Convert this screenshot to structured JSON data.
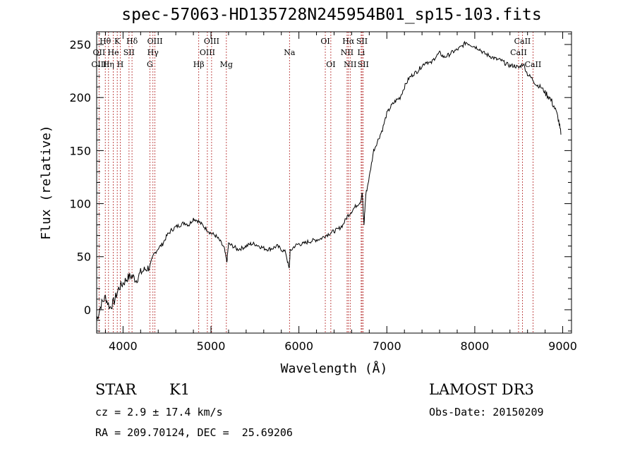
{
  "chart_data": {
    "type": "line",
    "title": "spec-57063-HD135728N245954B01_sp15-103.fits",
    "xlabel": "Wavelength (Å)",
    "ylabel": "Flux (relative)",
    "xlim": [
      3700,
      9100
    ],
    "ylim": [
      -22,
      262
    ],
    "x_ticks": [
      4000,
      5000,
      6000,
      7000,
      8000,
      9000
    ],
    "y_ticks": [
      0,
      50,
      100,
      150,
      200,
      250
    ],
    "series": [
      {
        "x": [
          3700,
          3750,
          3800,
          3850,
          3900,
          3950,
          4000,
          4050,
          4100,
          4150,
          4200,
          4250,
          4300,
          4350,
          4400,
          4450,
          4500,
          4550,
          4600,
          4650,
          4700,
          4750,
          4800,
          4850,
          4900,
          4950,
          5000,
          5050,
          5100,
          5150,
          5180,
          5200,
          5250,
          5300,
          5350,
          5400,
          5450,
          5500,
          5550,
          5600,
          5650,
          5700,
          5750,
          5800,
          5850,
          5890,
          5900,
          5950,
          6000,
          6050,
          6100,
          6150,
          6200,
          6250,
          6300,
          6350,
          6400,
          6450,
          6500,
          6550,
          6600,
          6650,
          6700,
          6720,
          6740,
          6760,
          6800,
          6850,
          6900,
          6950,
          7000,
          7050,
          7100,
          7150,
          7200,
          7250,
          7300,
          7350,
          7400,
          7450,
          7500,
          7550,
          7600,
          7650,
          7700,
          7750,
          7800,
          7850,
          7900,
          7950,
          8000,
          8050,
          8100,
          8150,
          8200,
          8250,
          8300,
          8350,
          8400,
          8450,
          8500,
          8550,
          8600,
          8650,
          8700,
          8750,
          8800,
          8850,
          8900,
          8950,
          8980
        ],
        "y": [
          -10,
          5,
          12,
          2,
          8,
          20,
          25,
          30,
          32,
          28,
          35,
          38,
          40,
          52,
          58,
          62,
          70,
          75,
          78,
          80,
          82,
          80,
          86,
          84,
          80,
          76,
          72,
          70,
          65,
          58,
          45,
          62,
          60,
          57,
          58,
          60,
          62,
          62,
          60,
          58,
          57,
          58,
          60,
          57,
          54,
          38,
          55,
          60,
          62,
          62,
          64,
          65,
          66,
          67,
          70,
          72,
          74,
          76,
          80,
          88,
          93,
          98,
          102,
          110,
          80,
          108,
          125,
          150,
          160,
          170,
          185,
          192,
          197,
          200,
          210,
          218,
          222,
          225,
          230,
          234,
          232,
          238,
          242,
          238,
          240,
          243,
          245,
          248,
          252,
          250,
          248,
          246,
          242,
          240,
          238,
          236,
          235,
          232,
          230,
          230,
          228,
          232,
          222,
          218,
          212,
          210,
          205,
          200,
          192,
          180,
          165
        ]
      }
    ],
    "line_markers": [
      {
        "label": "Hθ",
        "x": 3798,
        "row": 0
      },
      {
        "label": "K",
        "x": 3934,
        "row": 0
      },
      {
        "label": "Hδ",
        "x": 4102,
        "row": 0
      },
      {
        "label": "OIII",
        "x": 4363,
        "row": 0
      },
      {
        "label": "OIII",
        "x": 5007,
        "row": 0
      },
      {
        "label": "OI",
        "x": 6300,
        "row": 0
      },
      {
        "label": "Hα",
        "x": 6563,
        "row": 0
      },
      {
        "label": "SII",
        "x": 6717,
        "row": 0
      },
      {
        "label": "CaII",
        "x": 8542,
        "row": 0
      },
      {
        "label": "OII",
        "x": 3727,
        "row": 1
      },
      {
        "label": "He",
        "x": 3889,
        "row": 1
      },
      {
        "label": "SII",
        "x": 4068,
        "row": 1
      },
      {
        "label": "Hγ",
        "x": 4340,
        "row": 1
      },
      {
        "label": "OIII",
        "x": 4959,
        "row": 1
      },
      {
        "label": "Na",
        "x": 5893,
        "row": 1
      },
      {
        "label": "NII",
        "x": 6548,
        "row": 1
      },
      {
        "label": "Li",
        "x": 6708,
        "row": 1
      },
      {
        "label": "CaII",
        "x": 8498,
        "row": 1
      },
      {
        "label": "OIII",
        "x": 3727,
        "row": 2
      },
      {
        "label": "Hη",
        "x": 3835,
        "row": 2
      },
      {
        "label": "H",
        "x": 3968,
        "row": 2
      },
      {
        "label": "G",
        "x": 4305,
        "row": 2
      },
      {
        "label": "Hβ",
        "x": 4861,
        "row": 2
      },
      {
        "label": "Mg",
        "x": 5175,
        "row": 2
      },
      {
        "label": "OI",
        "x": 6363,
        "row": 2
      },
      {
        "label": "NII",
        "x": 6583,
        "row": 2
      },
      {
        "label": "SII",
        "x": 6731,
        "row": 2
      },
      {
        "label": "CaII",
        "x": 8662,
        "row": 2
      }
    ],
    "grid": false
  },
  "info": {
    "object_class": "STAR",
    "subclass": "K1",
    "redshift": "cz = 2.9 ± 17.4 km/s",
    "coords": "RA = 209.70124, DEC =  25.69206",
    "survey": "LAMOST DR3",
    "obs_date": "Obs-Date: 20150209"
  },
  "colors": {
    "spectrum": "#000000",
    "marker": "#b22222"
  }
}
